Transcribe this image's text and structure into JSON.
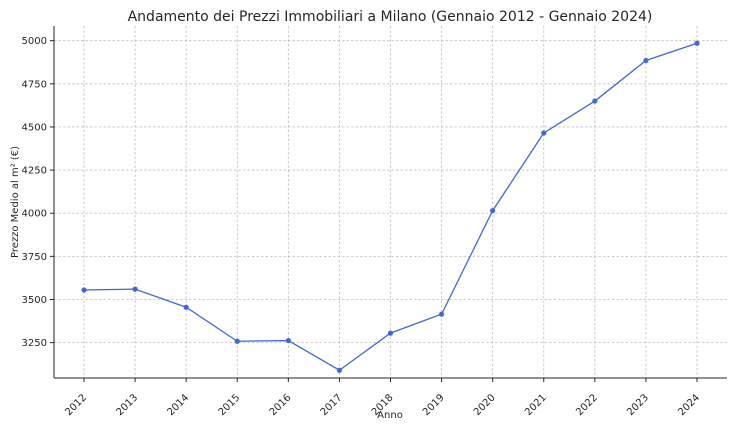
{
  "chart_data": {
    "type": "line",
    "title": "Andamento dei Prezzi Immobiliari a Milano (Gennaio 2012 - Gennaio 2024)",
    "xlabel": "Anno",
    "ylabel": "Prezzo Medio al m² (€)",
    "categories": [
      "2012",
      "2013",
      "2014",
      "2015",
      "2016",
      "2017",
      "2018",
      "2019",
      "2020",
      "2021",
      "2022",
      "2023",
      "2024"
    ],
    "series": [
      {
        "values": [
          3555,
          3560,
          3455,
          3258,
          3262,
          3090,
          3305,
          3415,
          4015,
          4465,
          4650,
          4885,
          4985
        ],
        "color": "#4169d1"
      }
    ],
    "yticks": [
      3250,
      3500,
      3750,
      4000,
      4250,
      4500,
      4750,
      5000
    ],
    "ylim": [
      3045,
      5085
    ],
    "grid": true,
    "legend": "none"
  }
}
